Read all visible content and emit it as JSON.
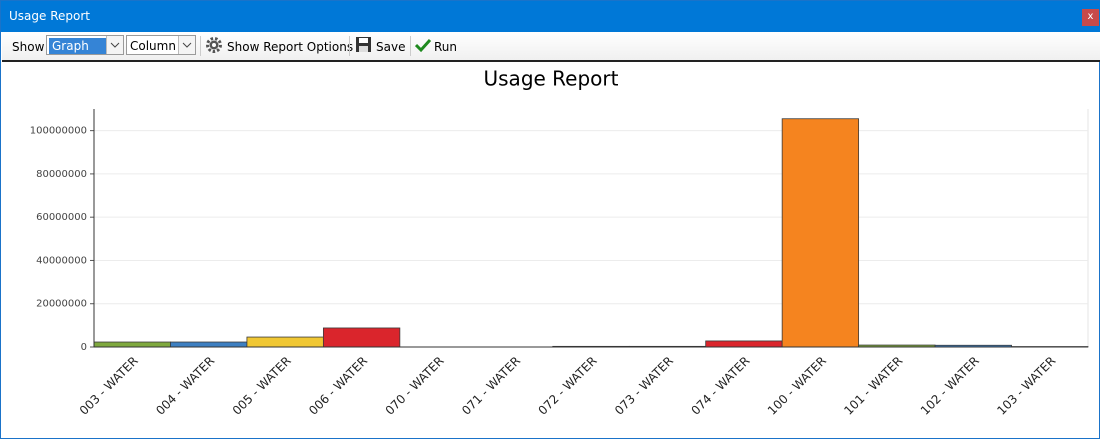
{
  "window": {
    "title": "Usage Report",
    "close": "x"
  },
  "toolbar": {
    "show_label": "Show",
    "view": "Graph",
    "chart_kind": "Column",
    "options": "Show Report Options",
    "save": "Save",
    "run": "Run"
  },
  "chart_data": {
    "type": "bar",
    "title": "Usage Report",
    "categories": [
      "003 - WATER",
      "004 - WATER",
      "005 - WATER",
      "006 - WATER",
      "070 - WATER",
      "071 - WATER",
      "072 - WATER",
      "073 - WATER",
      "074 - WATER",
      "100 - WATER",
      "101 - WATER",
      "102 - WATER",
      "103 - WATER"
    ],
    "values": [
      2300000,
      2300000,
      4600000,
      8800000,
      0,
      0,
      300000,
      300000,
      2800000,
      105500000,
      900000,
      800000,
      200000
    ],
    "colors": [
      "#7ea83e",
      "#3d7fc1",
      "#f0c733",
      "#da252c",
      "#f5841f",
      "#7ea83e",
      "#3d7fc1",
      "#f0c733",
      "#da252c",
      "#f5841f",
      "#7ea83e",
      "#3d7fc1",
      "#f0c733"
    ],
    "ylim": [
      0,
      110000000
    ],
    "yticks": [
      0,
      20000000,
      40000000,
      60000000,
      80000000,
      100000000
    ],
    "grid": true
  }
}
